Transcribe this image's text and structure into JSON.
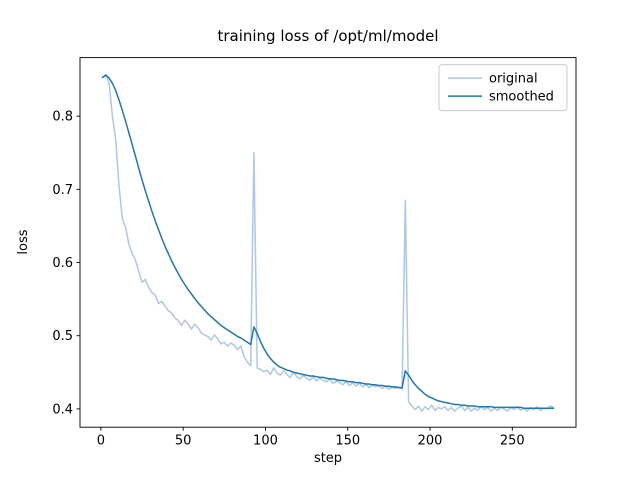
{
  "figure": {
    "background": "#ffffff"
  },
  "chart_data": {
    "type": "line",
    "title": "training loss of /opt/ml/model",
    "xlabel": "step",
    "ylabel": "loss",
    "xlim": [
      -12.7,
      288.7
    ],
    "ylim": [
      0.375,
      0.88
    ],
    "x_ticks": [
      0,
      50,
      100,
      150,
      200,
      250
    ],
    "y_ticks": [
      0.4,
      0.5,
      0.6,
      0.7,
      0.8
    ],
    "grid": false,
    "legend": {
      "position": "upper right",
      "border_color": "#cccccc",
      "background": "#ffffff"
    },
    "x": [
      1,
      3,
      5,
      7,
      9,
      11,
      13,
      15,
      17,
      19,
      21,
      23,
      25,
      27,
      29,
      31,
      33,
      35,
      37,
      39,
      41,
      43,
      45,
      47,
      49,
      51,
      53,
      55,
      57,
      59,
      61,
      63,
      65,
      67,
      69,
      71,
      73,
      75,
      77,
      79,
      81,
      83,
      85,
      87,
      89,
      91,
      93,
      95,
      97,
      99,
      101,
      103,
      105,
      107,
      109,
      111,
      113,
      115,
      117,
      119,
      121,
      123,
      125,
      127,
      129,
      131,
      133,
      135,
      137,
      139,
      141,
      143,
      145,
      147,
      149,
      151,
      153,
      155,
      157,
      159,
      161,
      163,
      165,
      167,
      169,
      171,
      173,
      175,
      177,
      179,
      181,
      183,
      185,
      187,
      189,
      191,
      193,
      195,
      197,
      199,
      201,
      203,
      205,
      207,
      209,
      211,
      213,
      215,
      217,
      219,
      221,
      223,
      225,
      227,
      229,
      231,
      233,
      235,
      237,
      239,
      241,
      243,
      245,
      247,
      249,
      251,
      253,
      255,
      257,
      259,
      261,
      263,
      265,
      267,
      269,
      271,
      273,
      275
    ],
    "series": [
      {
        "name": "original",
        "color": "#aec7e8",
        "y": [
          0.853,
          0.857,
          0.845,
          0.8,
          0.768,
          0.705,
          0.66,
          0.648,
          0.625,
          0.612,
          0.603,
          0.588,
          0.573,
          0.577,
          0.566,
          0.559,
          0.556,
          0.544,
          0.547,
          0.54,
          0.534,
          0.531,
          0.524,
          0.521,
          0.514,
          0.521,
          0.516,
          0.509,
          0.516,
          0.511,
          0.504,
          0.501,
          0.499,
          0.494,
          0.501,
          0.496,
          0.489,
          0.491,
          0.486,
          0.49,
          0.487,
          0.481,
          0.486,
          0.471,
          0.464,
          0.459,
          0.75,
          0.456,
          0.454,
          0.451,
          0.453,
          0.447,
          0.456,
          0.449,
          0.446,
          0.452,
          0.447,
          0.443,
          0.45,
          0.444,
          0.441,
          0.446,
          0.442,
          0.439,
          0.444,
          0.438,
          0.442,
          0.439,
          0.437,
          0.441,
          0.435,
          0.438,
          0.436,
          0.433,
          0.437,
          0.432,
          0.436,
          0.431,
          0.435,
          0.43,
          0.434,
          0.429,
          0.433,
          0.43,
          0.432,
          0.428,
          0.431,
          0.427,
          0.43,
          0.428,
          0.43,
          0.427,
          0.685,
          0.41,
          0.404,
          0.399,
          0.404,
          0.397,
          0.403,
          0.399,
          0.405,
          0.398,
          0.402,
          0.4,
          0.403,
          0.398,
          0.402,
          0.397,
          0.401,
          0.404,
          0.398,
          0.402,
          0.397,
          0.401,
          0.398,
          0.403,
          0.399,
          0.402,
          0.397,
          0.401,
          0.398,
          0.402,
          0.4,
          0.397,
          0.402,
          0.399,
          0.403,
          0.398,
          0.401,
          0.397,
          0.402,
          0.399,
          0.403,
          0.398,
          0.401,
          0.4,
          0.404,
          0.402
        ]
      },
      {
        "name": "smoothed",
        "color": "#1f77b4",
        "y": [
          0.853,
          0.856,
          0.852,
          0.845,
          0.835,
          0.822,
          0.808,
          0.793,
          0.777,
          0.761,
          0.745,
          0.729,
          0.713,
          0.698,
          0.684,
          0.67,
          0.657,
          0.645,
          0.633,
          0.622,
          0.612,
          0.602,
          0.593,
          0.585,
          0.577,
          0.57,
          0.563,
          0.557,
          0.551,
          0.545,
          0.54,
          0.535,
          0.53,
          0.526,
          0.522,
          0.518,
          0.514,
          0.511,
          0.508,
          0.505,
          0.502,
          0.499,
          0.497,
          0.494,
          0.491,
          0.488,
          0.512,
          0.503,
          0.492,
          0.483,
          0.475,
          0.469,
          0.464,
          0.46,
          0.457,
          0.455,
          0.453,
          0.452,
          0.45,
          0.449,
          0.448,
          0.447,
          0.446,
          0.445,
          0.445,
          0.444,
          0.443,
          0.443,
          0.442,
          0.441,
          0.441,
          0.44,
          0.439,
          0.439,
          0.438,
          0.437,
          0.437,
          0.436,
          0.436,
          0.435,
          0.434,
          0.434,
          0.433,
          0.433,
          0.432,
          0.432,
          0.431,
          0.431,
          0.43,
          0.43,
          0.429,
          0.429,
          0.452,
          0.446,
          0.439,
          0.433,
          0.428,
          0.424,
          0.42,
          0.417,
          0.415,
          0.413,
          0.411,
          0.41,
          0.409,
          0.408,
          0.407,
          0.406,
          0.406,
          0.405,
          0.405,
          0.404,
          0.404,
          0.404,
          0.403,
          0.403,
          0.403,
          0.403,
          0.403,
          0.402,
          0.402,
          0.402,
          0.402,
          0.402,
          0.402,
          0.402,
          0.402,
          0.402,
          0.401,
          0.401,
          0.401,
          0.401,
          0.401,
          0.401,
          0.401,
          0.401,
          0.401,
          0.401
        ]
      }
    ]
  }
}
